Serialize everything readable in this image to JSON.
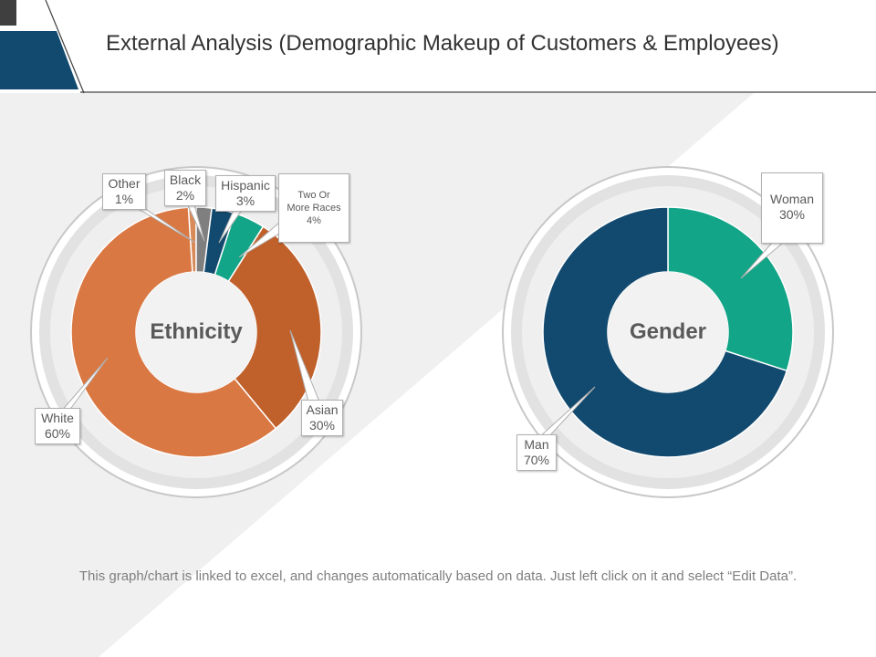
{
  "title": "External Analysis (Demographic Makeup of Customers & Employees)",
  "footer": "This graph/chart is linked to excel, and changes automatically based on data. Just left click on it and select “Edit Data”.",
  "colors": {
    "accent_dark": "#1f4e79",
    "accent_dark2": "#16496f",
    "ring": "#e1e1e1"
  },
  "chart_data": [
    {
      "type": "pie",
      "title": "Ethnicity",
      "categories": [
        "White",
        "Other",
        "Black",
        "Hispanic",
        "Two Or More Races",
        "Asian"
      ],
      "values": [
        60,
        1,
        2,
        3,
        4,
        30
      ],
      "unit": "%",
      "colors": [
        "#d97843",
        "#d98a59",
        "#7f7f7f",
        "#124a6f",
        "#12a587",
        "#c0602b"
      ],
      "labels": [
        {
          "line1": "White",
          "line2": "60%"
        },
        {
          "line1": "Other",
          "line2": "1%"
        },
        {
          "line1": "Black",
          "line2": "2%"
        },
        {
          "line1": "Hispanic",
          "line2": "3%"
        },
        {
          "line1": "Two Or More Races",
          "line2": "4%"
        },
        {
          "line1": "Asian",
          "line2": "30%"
        }
      ]
    },
    {
      "type": "pie",
      "title": "Gender",
      "categories": [
        "Woman",
        "Man"
      ],
      "values": [
        30,
        70
      ],
      "unit": "%",
      "colors": [
        "#12a587",
        "#124a6f"
      ],
      "labels": [
        {
          "line1": "Woman",
          "line2": "30%"
        },
        {
          "line1": "Man",
          "line2": "70%"
        }
      ]
    }
  ]
}
